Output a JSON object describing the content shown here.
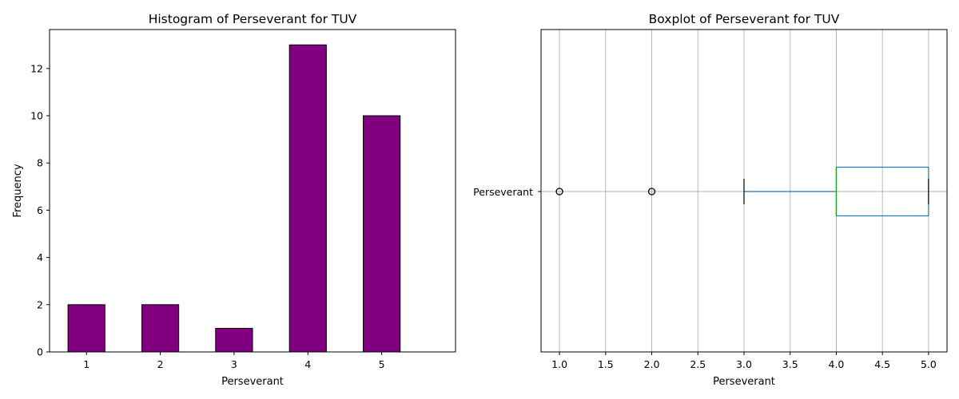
{
  "chart_data": [
    {
      "type": "bar",
      "title": "Histogram of Perseverant for TUV",
      "xlabel": "Perseverant",
      "ylabel": "Frequency",
      "categories": [
        "1",
        "2",
        "3",
        "4",
        "5"
      ],
      "values": [
        2,
        2,
        1,
        13,
        10
      ],
      "ylim": [
        0,
        13.65
      ],
      "yticks": [
        "0",
        "2",
        "4",
        "6",
        "8",
        "10",
        "12"
      ],
      "bar_color": "#800080",
      "edge_color": "#000000",
      "grid": false
    },
    {
      "type": "boxplot",
      "orientation": "horizontal",
      "title": "Boxplot of Perseverant for TUV",
      "xlabel": "Perseverant",
      "category": "Perseverant",
      "stats": {
        "whisker_low": 3,
        "q1": 4,
        "median": 4,
        "q3": 5,
        "whisker_high": 5,
        "outliers": [
          1,
          2
        ]
      },
      "xlim": [
        0.8,
        5.2
      ],
      "xticks": [
        "1.0",
        "1.5",
        "2.0",
        "2.5",
        "3.0",
        "3.5",
        "4.0",
        "4.5",
        "5.0"
      ],
      "box_color": "#1f77b4",
      "median_color": "#2ca02c",
      "grid": true
    }
  ]
}
